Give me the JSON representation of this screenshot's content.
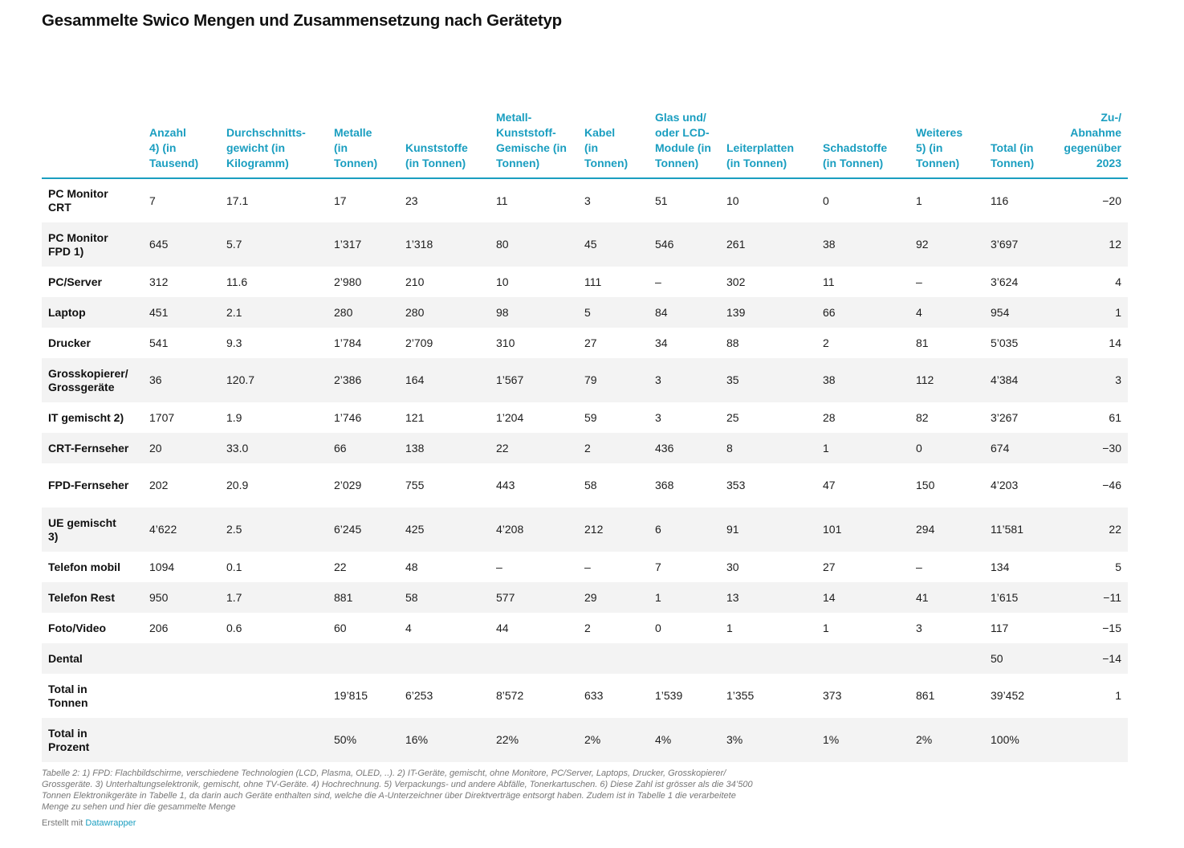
{
  "title": "Gesammelte Swico Mengen und Zusammensetzung nach Gerätetyp",
  "chart_data": {
    "type": "table",
    "columns": [
      "",
      "Anzahl 4) (in Tausend)",
      "Durchschnitts-gewicht (in Kilogramm)",
      "Metalle (in Tonnen)",
      "Kunststoffe (in Tonnen)",
      "Metall-Kunststoff-Gemische (in Tonnen)",
      "Kabel (in Tonnen)",
      "Glas und/ oder LCD-Module (in Tonnen)",
      "Leiterplatten (in Tonnen)",
      "Schadstoffe (in Tonnen)",
      "Weiteres 5) (in Tonnen)",
      "Total (in Tonnen)",
      "Zu-/ Abnahme gegenüber 2023"
    ],
    "rows": [
      [
        "PC Monitor CRT",
        "7",
        "17.1",
        "17",
        "23",
        "11",
        "3",
        "51",
        "10",
        "0",
        "1",
        "116",
        "−20"
      ],
      [
        "PC Monitor FPD 1)",
        "645",
        "5.7",
        "1’317",
        "1’318",
        "80",
        "45",
        "546",
        "261",
        "38",
        "92",
        "3’697",
        "12"
      ],
      [
        "PC/Server",
        "312",
        "11.6",
        "2’980",
        "210",
        "10",
        "111",
        "–",
        "302",
        "11",
        "–",
        "3’624",
        "4"
      ],
      [
        "Laptop",
        "451",
        "2.1",
        "280",
        "280",
        "98",
        "5",
        "84",
        "139",
        "66",
        "4",
        "954",
        "1"
      ],
      [
        "Drucker",
        "541",
        "9.3",
        "1’784",
        "2’709",
        "310",
        "27",
        "34",
        "88",
        "2",
        "81",
        "5’035",
        "14"
      ],
      [
        "Grosskopierer/ Grossgeräte",
        "36",
        "120.7",
        "2’386",
        "164",
        "1’567",
        "79",
        "3",
        "35",
        "38",
        "112",
        "4’384",
        "3"
      ],
      [
        "IT gemischt 2)",
        "1707",
        "1.9",
        "1’746",
        "121",
        "1’204",
        "59",
        "3",
        "25",
        "28",
        "82",
        "3’267",
        "61"
      ],
      [
        "CRT-Fernseher",
        "20",
        "33.0",
        "66",
        "138",
        "22",
        "2",
        "436",
        "8",
        "1",
        "0",
        "674",
        "−30"
      ],
      [
        "FPD-Fernseher",
        "202",
        "20.9",
        "2’029",
        "755",
        "443",
        "58",
        "368",
        "353",
        "47",
        "150",
        "4’203",
        "−46"
      ],
      [
        "UE gemischt 3)",
        "4’622",
        "2.5",
        "6’245",
        "425",
        "4’208",
        "212",
        "6",
        "91",
        "101",
        "294",
        "11’581",
        "22"
      ],
      [
        "Telefon mobil",
        "1094",
        "0.1",
        "22",
        "48",
        "–",
        "–",
        "7",
        "30",
        "27",
        "–",
        "134",
        "5"
      ],
      [
        "Telefon Rest",
        "950",
        "1.7",
        "881",
        "58",
        "577",
        "29",
        "1",
        "13",
        "14",
        "41",
        "1’615",
        "−11"
      ],
      [
        "Foto/Video",
        "206",
        "0.6",
        "60",
        "4",
        "44",
        "2",
        "0",
        "1",
        "1",
        "3",
        "117",
        "−15"
      ],
      [
        "Dental",
        "",
        "",
        "",
        "",
        "",
        "",
        "",
        "",
        "",
        "",
        "50",
        "−14"
      ],
      [
        "Total in Tonnen",
        "",
        "",
        "19’815",
        "6’253",
        "8’572",
        "633",
        "1’539",
        "1’355",
        "373",
        "861",
        "39’452",
        "1"
      ],
      [
        "Total in Prozent",
        "",
        "",
        "50%",
        "16%",
        "22%",
        "2%",
        "4%",
        "3%",
        "1%",
        "2%",
        "100%",
        ""
      ]
    ]
  },
  "notes": "Tabelle 2: 1) FPD: Flachbildschirme, verschiedene Technologien (LCD, Plasma, OLED, ..). 2) IT-Geräte, gemischt, ohne Monitore, PC/Server, Laptops, Drucker, Grosskopierer/ Grossgeräte. 3) Unterhaltungselektronik, gemischt, ohne TV-Geräte. 4) Hochrechnung. 5) Verpackungs- und andere Abfälle, Tonerkartuschen. 6) Diese Zahl ist grösser als die 34’500 Tonnen Elektronikgeräte in Tabelle 1, da darin auch Geräte enthalten sind, welche die A-Unterzeichner über Direktverträge entsorgt haben. Zudem ist in Tabelle 1 die verarbeitete Menge zu sehen und hier die gesammelte Menge",
  "credit_prefix": "Erstellt mit",
  "credit_link": "Datawrapper",
  "colors": {
    "accent": "#1a9ec0",
    "row_alt": "#f3f3f3"
  }
}
